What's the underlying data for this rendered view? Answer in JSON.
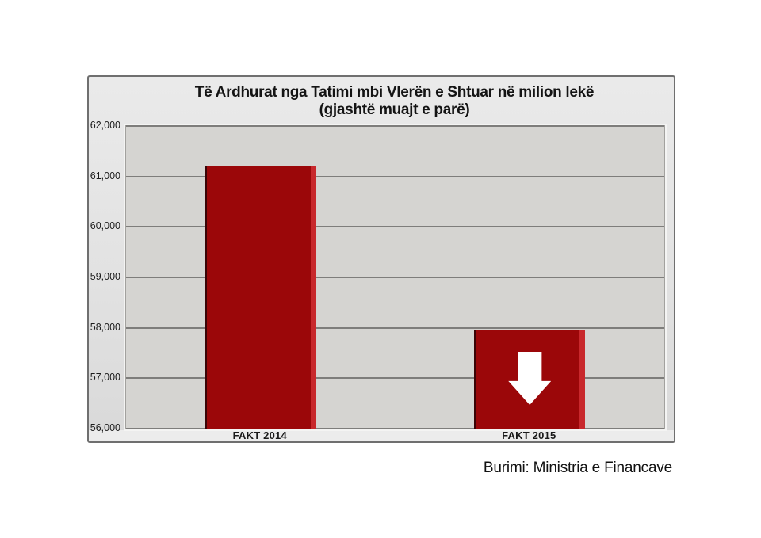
{
  "page": {
    "background": "#ffffff",
    "source_note": "Burimi: Ministria e Financave"
  },
  "chart_data": {
    "type": "bar",
    "title": "Të Ardhurat nga Tatimi mbi Vlerën e Shtuar në milion lekë",
    "subtitle": "(gjashtë muajt e parë)",
    "categories": [
      "FAKT 2014",
      "FAKT 2015"
    ],
    "values": [
      61200,
      57950
    ],
    "ylim": [
      56000,
      62000
    ],
    "ytick_interval": 1000,
    "ytick_labels": [
      "56,000",
      "57,000",
      "58,000",
      "59,000",
      "60,000",
      "61,000",
      "62,000"
    ],
    "grid": true,
    "legend": false,
    "xlabel": "",
    "ylabel": "",
    "annotations": [
      {
        "type": "down-arrow",
        "category_index": 1,
        "color": "#ffffff",
        "meaning": "decrease vs previous year"
      }
    ],
    "colors": {
      "bar_fill": "#9b0709",
      "bar_right_highlight": "#c8282c",
      "bar_left_edge": "#3a0406",
      "plot_background": "#d5d4d1",
      "panel_background": "#e2e2e2",
      "gridline": "#7e7d7b",
      "panel_border": "#6f6f6f",
      "arrow": "#ffffff"
    }
  }
}
